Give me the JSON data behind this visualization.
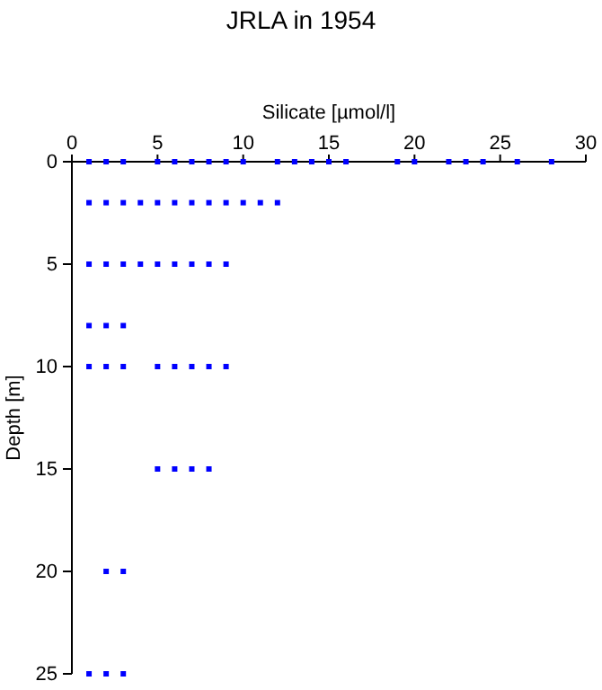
{
  "chart_data": {
    "type": "scatter",
    "title": "JRLA in 1954",
    "xlabel": "Silicate [µmol/l]",
    "ylabel": "Depth [m]",
    "marker": "square",
    "xlim": [
      0,
      30
    ],
    "xticks": [
      0,
      5,
      10,
      15,
      20,
      25,
      30
    ],
    "ylim": [
      25,
      0
    ],
    "yticks": [
      0,
      5,
      10,
      15,
      20,
      25
    ],
    "grid": false,
    "series": [
      {
        "color": "#0000ff",
        "x": [
          1,
          2,
          3,
          5,
          6,
          7,
          8,
          9,
          10,
          12,
          13,
          14,
          15,
          16,
          19,
          20,
          22,
          23,
          24,
          26,
          28,
          1,
          2,
          3,
          4,
          5,
          6,
          7,
          8,
          9,
          10,
          11,
          12,
          1,
          2,
          3,
          4,
          5,
          6,
          7,
          8,
          9,
          1,
          2,
          3,
          1,
          2,
          3,
          5,
          6,
          7,
          8,
          9,
          5,
          6,
          7,
          8,
          2,
          3,
          1,
          2,
          3
        ],
        "values": [
          0,
          0,
          0,
          0,
          0,
          0,
          0,
          0,
          0,
          0,
          0,
          0,
          0,
          0,
          0,
          0,
          0,
          0,
          0,
          0,
          0,
          2,
          2,
          2,
          2,
          2,
          2,
          2,
          2,
          2,
          2,
          2,
          2,
          5,
          5,
          5,
          5,
          5,
          5,
          5,
          5,
          5,
          8,
          8,
          8,
          10,
          10,
          10,
          10,
          10,
          10,
          10,
          10,
          15,
          15,
          15,
          15,
          20,
          20,
          25,
          25,
          25
        ]
      }
    ]
  }
}
